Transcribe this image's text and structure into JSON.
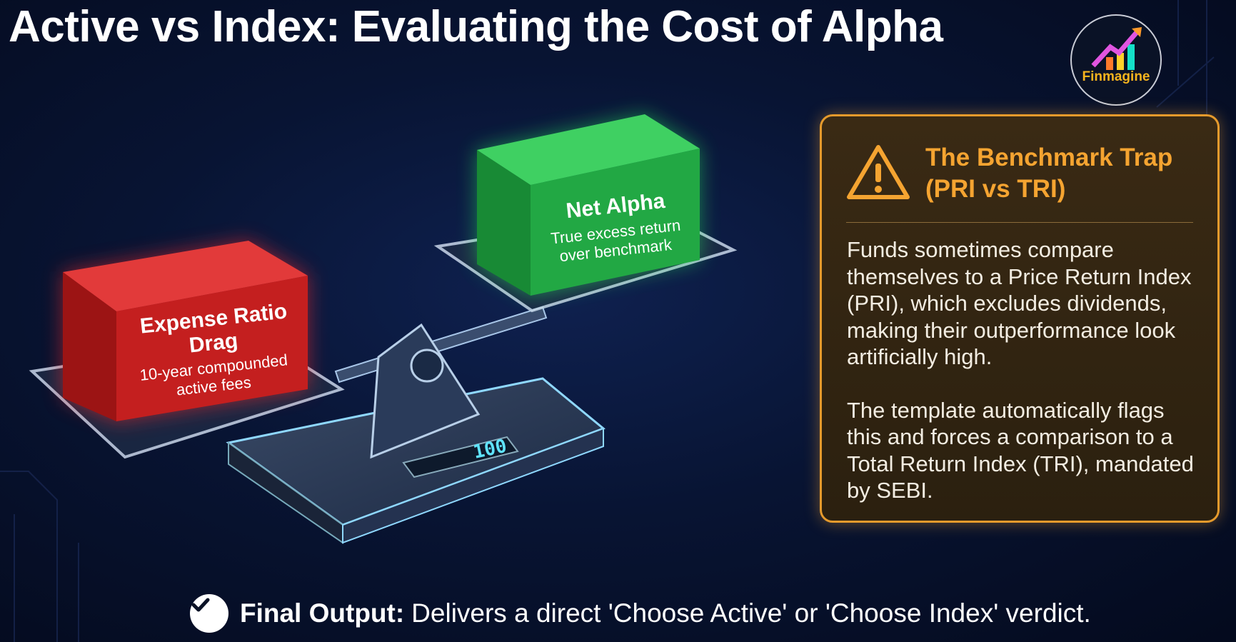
{
  "title": "Active vs Index: Evaluating the Cost of Alpha",
  "logo": {
    "name": "Finmagine",
    "icon": "rising-bar-chart-arrow"
  },
  "scale": {
    "left_block": {
      "title_line1": "Expense Ratio",
      "title_line2": "Drag",
      "sub_line1": "10-year compounded",
      "sub_line2": "active fees",
      "color": "#d42a2a"
    },
    "right_block": {
      "title": "Net Alpha",
      "sub_line1": "True excess return",
      "sub_line2": "over benchmark",
      "color": "#22b14c"
    },
    "display_value": "100"
  },
  "warning": {
    "icon": "warning-triangle-icon",
    "title_line1": "The Benchmark Trap",
    "title_line2": "(PRI vs TRI)",
    "paragraph1": "Funds sometimes compare themselves to a Price Return Index (PRI), which excludes dividends, making their outperformance look artificially high.",
    "paragraph2": "The template automatically flags this and forces a comparison to a Total Return Index (TRI), mandated by SEBI.",
    "accent": "#f5a431"
  },
  "footer": {
    "label": "Final Output:",
    "text": "Delivers a direct 'Choose Active' or 'Choose Index' verdict."
  }
}
